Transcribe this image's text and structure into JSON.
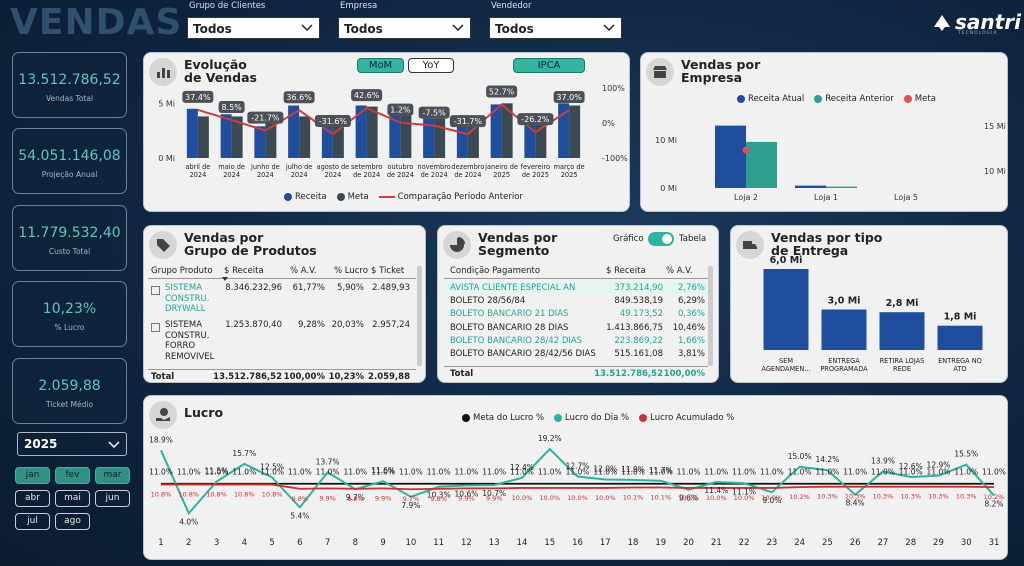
{
  "header": {
    "title": "VENDAS",
    "logo": "santri",
    "logo_sub": "TECNOLOGIA"
  },
  "filters": [
    {
      "label": "Grupo de Clientes",
      "value": "Todos"
    },
    {
      "label": "Empresa",
      "value": "Todos"
    },
    {
      "label": "Vendedor",
      "value": "Todos"
    }
  ],
  "kpis": [
    {
      "value": "13.512.786,52",
      "label": "Vendas Total"
    },
    {
      "value": "54.051.146,08",
      "label": "Projeção Anual"
    },
    {
      "value": "11.779.532,40",
      "label": "Custo Total"
    },
    {
      "value": "10,23%",
      "label": "% Lucro"
    },
    {
      "value": "2.059,88",
      "label": "Ticket Médio"
    }
  ],
  "year_slicer": "2025",
  "months": [
    {
      "label": "jan",
      "selected": true
    },
    {
      "label": "fev",
      "selected": true
    },
    {
      "label": "mar",
      "selected": true
    },
    {
      "label": "abr",
      "selected": false
    },
    {
      "label": "mai",
      "selected": false
    },
    {
      "label": "jun",
      "selected": false
    },
    {
      "label": "jul",
      "selected": false
    },
    {
      "label": "ago",
      "selected": false
    }
  ],
  "tables": {
    "grupo": {
      "title": "Vendas por\nGrupo de Produtos",
      "columns": [
        "Grupo Produto",
        "$ Receita",
        "% A.V.",
        "% Lucro",
        "$ Ticket"
      ],
      "rows": [
        [
          "SISTEMA\nCONSTRU.\nDRYWALL",
          "8.346.232,96",
          "61,77%",
          "5,90%",
          "2.489,93"
        ],
        [
          "SISTEMA\nCONSTRU.\nFORRO\nREMOVIVEL",
          "1.253.870,40",
          "9,28%",
          "20,03%",
          "2.957,24"
        ]
      ],
      "total": [
        "Total",
        "13.512.786,52",
        "100,00%",
        "10,23%",
        "2.059,88"
      ]
    },
    "segmento": {
      "title": "Vendas por\nSegmento",
      "toggle": [
        "Gráfico",
        "Tabela"
      ],
      "columns": [
        "Condição Pagamento",
        "$ Receita",
        "% A.V."
      ],
      "rows": [
        [
          "AVISTA CLIENTE ESPECIAL AN",
          "373.214,90",
          "2,76%"
        ],
        [
          "BOLETO 28/56/84",
          "849.538,19",
          "6,29%"
        ],
        [
          "BOLETO BANCARIO 21 DIAS",
          "49.173,52",
          "0,36%"
        ],
        [
          "BOLETO BANCARIO 28 DIAS",
          "1.413.866,75",
          "10,46%"
        ],
        [
          "BOLETO BANCARIO 28/42 DIAS",
          "223.869,22",
          "1,66%"
        ],
        [
          "BOLETO BANCARIO 28/42/56 DIAS",
          "515.161,08",
          "3,81%"
        ]
      ],
      "total": [
        "Total",
        "13.512.786,52",
        "100,00%"
      ]
    }
  },
  "chart_data": [
    {
      "type": "bar",
      "title": "Evolução\nde Vendas",
      "buttons": [
        {
          "label": "MoM",
          "active": true
        },
        {
          "label": "YoY",
          "active": false
        },
        {
          "label": "IPCA",
          "active": true
        }
      ],
      "categories": [
        "abril de\n2024",
        "maio de\n2024",
        "junho de\n2024",
        "julho de\n2024",
        "agosto de\n2024",
        "setembro\nde 2024",
        "outubro\nde 2024",
        "novembro\nde 2024",
        "dezembro\nde 2024",
        "janeiro de\n2025",
        "fevereiro\nde 2025",
        "março de\n2025"
      ],
      "series": [
        {
          "name": "Receita",
          "type": "bar",
          "color": "#1f4e9e",
          "values": [
            4.5,
            4.0,
            2.9,
            4.8,
            3.4,
            4.8,
            4.0,
            3.6,
            3.1,
            4.9,
            3.1,
            5.0
          ]
        },
        {
          "name": "Meta",
          "type": "bar",
          "color": "#3b4a52",
          "values": [
            3.8,
            3.8,
            3.6,
            3.8,
            3.5,
            4.7,
            4.1,
            3.6,
            3.6,
            5.0,
            3.2,
            4.8
          ]
        },
        {
          "name": "Comparação Período Anterior",
          "type": "line",
          "axis": "y2",
          "color": "#d13b3b",
          "values": [
            37.4,
            8.5,
            -21.7,
            36.6,
            -31.6,
            42.6,
            1.2,
            -7.5,
            -31.7,
            52.7,
            -26.2,
            37.0
          ],
          "value_labels": [
            "37.4%",
            "8.5%",
            "-21.7%",
            "36.6%",
            "-31.6%",
            "42.6%",
            "1.2%",
            "-7.5%",
            "-31.7%",
            "52.7%",
            "-26.2%",
            "37.0%"
          ]
        }
      ],
      "ylim": [
        0,
        6.4
      ],
      "yticks": [
        {
          "value": 0,
          "label": "0 Mi"
        },
        {
          "value": 5,
          "label": "5 Mi"
        }
      ],
      "y2lim": [
        -100,
        100
      ],
      "y2ticks": [
        {
          "value": 100,
          "label": "100%"
        },
        {
          "value": 0,
          "label": "0%"
        },
        {
          "value": -100,
          "label": "-100%"
        }
      ],
      "legend": "bottom"
    },
    {
      "type": "bar",
      "title": "Vendas por\nEmpresa",
      "categories": [
        "Loja 2",
        "Loja 1",
        "Loja 5"
      ],
      "series": [
        {
          "name": "Receita Atual",
          "type": "bar",
          "color": "#1f4e9e",
          "values": [
            13.0,
            0.5,
            0
          ]
        },
        {
          "name": "Receita Anterior",
          "type": "bar",
          "color": "#2e9e8e",
          "values": [
            9.6,
            0.3,
            0
          ]
        },
        {
          "name": "Meta",
          "type": "scatter",
          "axis": "y2",
          "color": "#e05252",
          "values": [
            12.3,
            null,
            null
          ]
        }
      ],
      "ylim": [
        0,
        15
      ],
      "yticks": [
        {
          "value": 0,
          "label": "0 Mi"
        },
        {
          "value": 10,
          "label": "10 Mi"
        }
      ],
      "y2lim": [
        8.1,
        16.1
      ],
      "y2ticks": [
        {
          "value": 15,
          "label": "15 Mi"
        },
        {
          "value": 10,
          "label": "10 Mi"
        }
      ],
      "legend": "top"
    },
    {
      "type": "bar",
      "title": "Vendas por tipo\nde Entrega",
      "categories": [
        "SEM\nAGENDAMEN...",
        "ENTREGA\nPROGRAMADA",
        "RETIRA LOJAS\nREDE",
        "ENTREGA NO\nATO"
      ],
      "values": [
        6.0,
        3.0,
        2.8,
        1.8
      ],
      "value_labels": [
        "6,0 Mi",
        "3,0 Mi",
        "2,8 Mi",
        "1,8 Mi"
      ],
      "color": "#1f4e9e",
      "ylim": [
        0,
        6
      ]
    },
    {
      "type": "line",
      "title": "Lucro",
      "x": [
        1,
        2,
        3,
        4,
        5,
        6,
        7,
        8,
        9,
        10,
        11,
        12,
        13,
        14,
        15,
        16,
        17,
        18,
        19,
        20,
        21,
        22,
        23,
        24,
        25,
        26,
        27,
        28,
        29,
        30,
        31
      ],
      "xlim": [
        1,
        31
      ],
      "ylim": [
        1,
        23
      ],
      "series": [
        {
          "name": "Meta do Lucro %",
          "color": "#111111",
          "values": [
            11.0,
            11.0,
            11.0,
            11.0,
            11.0,
            11.0,
            11.0,
            11.0,
            11.0,
            11.0,
            11.0,
            11.0,
            11.0,
            11.0,
            11.0,
            11.0,
            11.0,
            11.0,
            11.0,
            11.0,
            11.0,
            11.0,
            11.0,
            11.0,
            11.0,
            11.0,
            11.0,
            11.0,
            11.0,
            11.0,
            11.0
          ],
          "value_labels": [
            "11.0%",
            "11.0%",
            "11.0%",
            "11.0%",
            "11.0%",
            "11.0%",
            "11.0%",
            "11.0%",
            "11.0%",
            "11.0%",
            "11.0%",
            "11.0%",
            "11.0%",
            "11.0%",
            "11.0%",
            "11.0%",
            "11.0%",
            "11.0%",
            "11.0%",
            "11.0%",
            "11.0%",
            "11.0%",
            "11.0%",
            "11.0%",
            "11.0%",
            "11.0%",
            "11.0%",
            "11.0%",
            "11.0%",
            "11.0%",
            "11.0%"
          ]
        },
        {
          "name": "Lucro do Dia %",
          "color": "#2bb3a0",
          "values": [
            18.9,
            4.0,
            11.5,
            15.7,
            12.5,
            5.4,
            13.7,
            9.7,
            11.6,
            7.9,
            10.3,
            10.6,
            10.7,
            12.4,
            19.2,
            12.7,
            12.0,
            11.9,
            11.7,
            9.6,
            11.4,
            11.1,
            9.0,
            15.0,
            14.2,
            8.4,
            13.9,
            12.6,
            12.9,
            15.5,
            8.2
          ],
          "value_labels": [
            "18.9%",
            "4.0%",
            "11.5%",
            "15.7%",
            "12.5%",
            "5.4%",
            "13.7%",
            "9.7%",
            "11.6%",
            "7.9%",
            "10.3%",
            "10.6%",
            "10.7%",
            "12.4%",
            "19.2%",
            "12.7%",
            "12.0%",
            "11.9%",
            "11.7%",
            "9.6%",
            "11.4%",
            "11.1%",
            "9.0%",
            "15.0%",
            "14.2%",
            "8.4%",
            "13.9%",
            "12.6%",
            "12.9%",
            "15.5%",
            "8.2%"
          ]
        },
        {
          "name": "Lucro Acumulado %",
          "color": "#c83232",
          "values": [
            10.8,
            10.8,
            10.8,
            10.8,
            10.8,
            9.8,
            9.9,
            9.8,
            9.9,
            9.7,
            9.8,
            9.9,
            9.9,
            10.0,
            10.0,
            10.0,
            10.0,
            10.1,
            10.1,
            10.0,
            10.0,
            10.0,
            10.0,
            10.2,
            10.3,
            10.3,
            10.3,
            10.3,
            10.3,
            10.3,
            10.2
          ],
          "value_labels": [
            "10.8%",
            "10.8%",
            "10.8%",
            "10.8%",
            "10.8%",
            "9.8%",
            "9.9%",
            "9.8%",
            "9.9%",
            "9.7%",
            "9.8%",
            "9.9%",
            "9.9%",
            "10.0%",
            "10.0%",
            "10.0%",
            "10.0%",
            "10.1%",
            "10.1%",
            "10.0%",
            "10.0%",
            "10.0%",
            "10.0%",
            "10.2%",
            "10.3%",
            "10.3%",
            "10.3%",
            "10.3%",
            "10.3%",
            "10.3%",
            "10.2%"
          ]
        }
      ],
      "legend": "top"
    }
  ]
}
